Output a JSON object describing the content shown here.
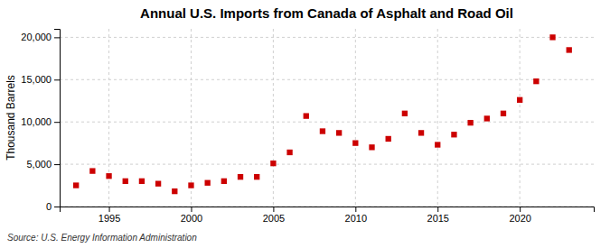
{
  "chart_data": {
    "type": "scatter",
    "title": "Annual U.S. Imports from Canada of Asphalt and Road Oil",
    "y_label": "Thousand Barrels",
    "annotations": [
      "Source: U.S. Energy Information Administration"
    ],
    "x": [
      1993,
      1994,
      1995,
      1996,
      1997,
      1998,
      1999,
      2000,
      2001,
      2002,
      2003,
      2004,
      2005,
      2006,
      2007,
      2008,
      2009,
      2010,
      2011,
      2012,
      2013,
      2014,
      2015,
      2016,
      2017,
      2018,
      2019,
      2020,
      2021,
      2022,
      2023
    ],
    "values": [
      2500,
      4200,
      3600,
      3000,
      3000,
      2700,
      1800,
      2500,
      2800,
      3000,
      3500,
      3500,
      5100,
      6400,
      10700,
      8900,
      8700,
      7500,
      7000,
      8000,
      11000,
      8700,
      7300,
      8500,
      9900,
      10400,
      11000,
      12600,
      14800,
      20000,
      18500
    ],
    "color": "#cc0000",
    "marker": "square",
    "xlim": [
      1992,
      2024.5
    ],
    "ylim": [
      0,
      21000
    ],
    "xticks": [
      1995,
      2000,
      2005,
      2010,
      2015,
      2020
    ],
    "yticks": [
      0,
      {
        "value": 5000,
        "label": "5,000"
      },
      {
        "value": 10000,
        "label": "10,000"
      },
      {
        "value": 15000,
        "label": "15,000"
      },
      {
        "value": 20000,
        "label": "20,000"
      }
    ],
    "grid": true
  }
}
